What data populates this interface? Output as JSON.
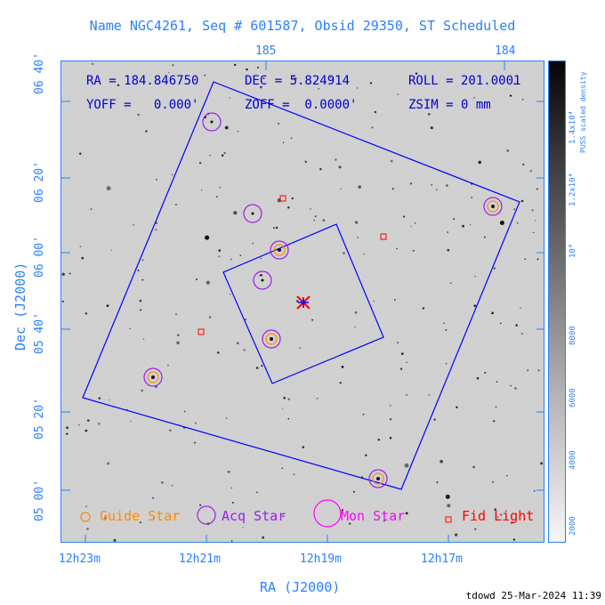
{
  "header": {
    "title": "Name NGC4261, Seq # 601587, Obsid 29350, ST Scheduled"
  },
  "info": {
    "ra": "RA = 184.846750",
    "dec": "DEC = 5.824914",
    "roll": "ROLL = 201.0001",
    "yoff": "YOFF =   0.000'",
    "zoff": "ZOFF =  0.0000'",
    "zsim": "ZSIM = 0 mm"
  },
  "axes": {
    "bottom_label": "RA (J2000)",
    "left_label": "Dec (J2000)",
    "bottom_ticks": [
      "12h23m",
      "12h21m",
      "12h19m",
      "12h17m"
    ],
    "top_ticks": [
      "185",
      "184"
    ],
    "left_ticks": [
      "6 40'",
      "6 20'",
      "6 00'",
      "5 40'",
      "5 20'",
      "5 00'"
    ],
    "left_ticks_display": [
      "06 40'",
      "06 20'",
      "06 00'",
      "05 40'",
      "05 20'",
      "05 00'"
    ]
  },
  "colorbar": {
    "label": "PUSS scaled density",
    "ticks": [
      "1.4x10⁴",
      "1.2x10⁴",
      "10⁴",
      "8000",
      "6000",
      "4000",
      "2000"
    ]
  },
  "legend": {
    "guide": "Guide Star",
    "acq": "Acq Star",
    "mon": "Mon Star",
    "fid": "Fid Light"
  },
  "colors": {
    "axis": "#2a7fff",
    "guide": "#ff8c00",
    "acq": "#9b1fe8",
    "mon": "#ff00ff",
    "fid": "#ff0000",
    "fov": "#0000ff"
  },
  "footer": {
    "stamp": "tdowd 25-Mar-2024 11:39"
  }
}
